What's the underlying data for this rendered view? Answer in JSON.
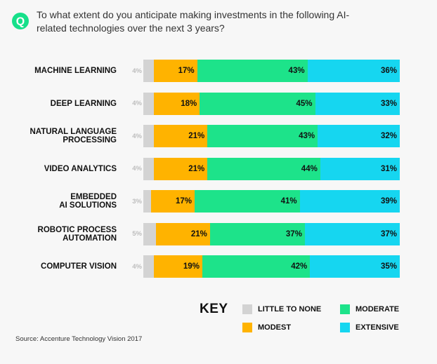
{
  "question": "To what extent do you anticipate making investments in the following AI-related technologies over the next 3 years?",
  "icon": "q-icon",
  "colors": {
    "little_to_none": "#d3d3d3",
    "modest": "#ffb300",
    "moderate": "#1de38a",
    "extensive": "#16d6f0",
    "q_icon": "#16e08a"
  },
  "chart_data": {
    "type": "bar",
    "orientation": "horizontal",
    "stacked": true,
    "categories": [
      "MACHINE LEARNING",
      "DEEP LEARNING",
      "NATURAL LANGUAGE\nPROCESSING",
      "VIDEO ANALYTICS",
      "EMBEDDED\nAI SOLUTIONS",
      "ROBOTIC PROCESS\nAUTOMATION",
      "COMPUTER VISION"
    ],
    "series": [
      {
        "name": "LITTLE TO NONE",
        "values": [
          4,
          4,
          4,
          4,
          3,
          5,
          4
        ],
        "labels": [
          "4%",
          "4%",
          "4%",
          "4%",
          "3%",
          "5%",
          "4%"
        ]
      },
      {
        "name": "MODEST",
        "values": [
          17,
          18,
          21,
          21,
          17,
          21,
          19
        ],
        "labels": [
          "17%",
          "18%",
          "21%",
          "21%",
          "17%",
          "21%",
          "19%"
        ]
      },
      {
        "name": "MODERATE",
        "values": [
          43,
          45,
          43,
          44,
          41,
          37,
          42
        ],
        "labels": [
          "43%",
          "45%",
          "43%",
          "44%",
          "41%",
          "37%",
          "42%"
        ]
      },
      {
        "name": "EXTENSIVE",
        "values": [
          36,
          33,
          32,
          31,
          39,
          37,
          35
        ],
        "labels": [
          "36%",
          "33%",
          "32%",
          "31%",
          "39%",
          "37%",
          "35%"
        ]
      }
    ],
    "legend": {
      "title": "KEY",
      "position": "bottom",
      "items": [
        "LITTLE TO NONE",
        "MODERATE",
        "MODEST",
        "EXTENSIVE"
      ]
    }
  },
  "source": "Source: Accenture Technology Vision 2017"
}
